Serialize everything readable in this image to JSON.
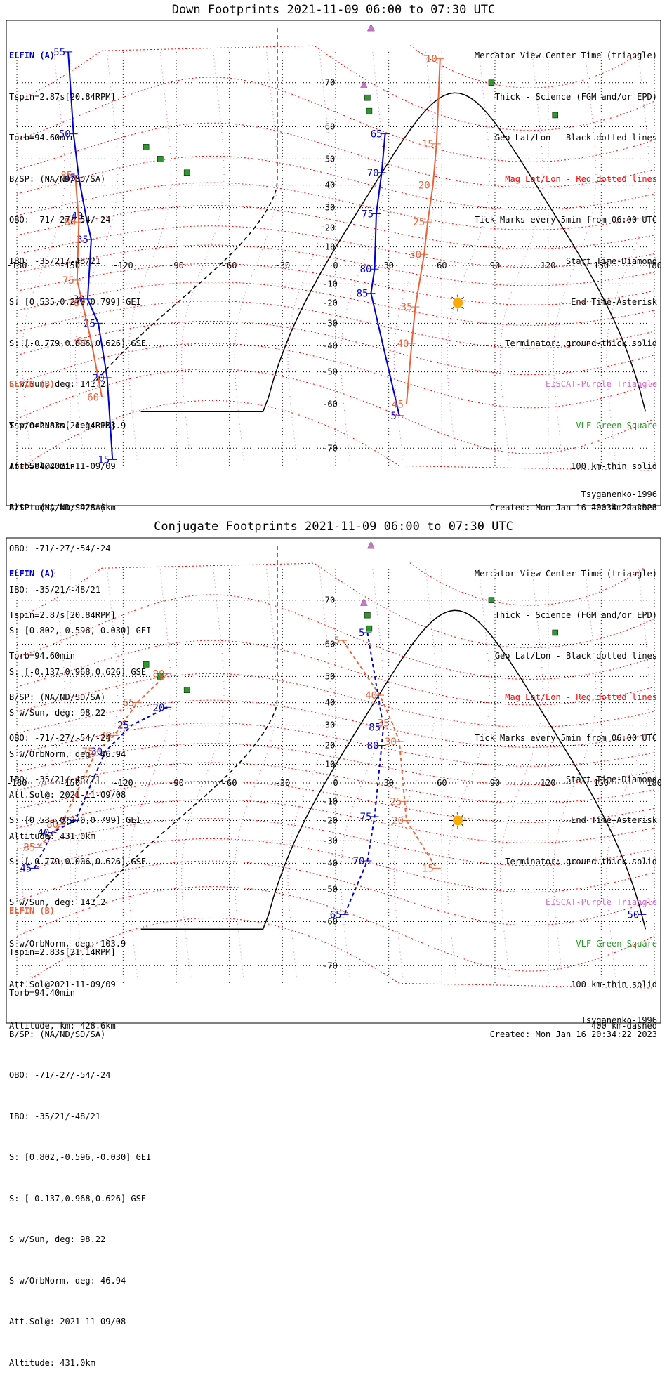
{
  "panels": [
    {
      "title": "Down Footprints 2021-11-09 06:00 to 07:30 UTC",
      "sat_a": {
        "name": "ELFIN (A)",
        "lines": [
          "Tspin=2.87s[20.84RPM]",
          "Torb=94.60min",
          "B/SP: (NA/ND/SD/SA)",
          "OBO: -71/-27/-54/-24",
          "IBO: -35/21/-48/21",
          "S: [0.535,0.270,0.799] GEI",
          "S: [-0.779,0.006,0.626] GSE",
          "S w/Sun, deg: 141.2",
          "S w/OrbNorm, deg: 103.9",
          "Att.Sol@2021-11-09/09",
          "Altitude, km: 428.6km"
        ]
      },
      "sat_b": {
        "name": "ELFIN (B)",
        "lines": [
          "Tspin=2.83s[21.14RPM]",
          "Torb=94.40min",
          "B/SP: (NA/ND/SD/SA)",
          "OBO: -71/-27/-54/-24",
          "IBO: -35/21/-48/21",
          "S: [0.802,-0.596,-0.030] GEI",
          "S: [-0.137,0.968,0.626] GSE",
          "S w/Sun, deg: 98.22",
          "S w/OrbNorm, deg: 46.94",
          "Att.Sol@: 2021-11-09/08",
          "Altitude: 431.0km"
        ]
      },
      "model": "Tsyganenko-1996",
      "created": "Created: Mon Jan 16 20:34:22 2023"
    },
    {
      "title": "Conjugate Footprints 2021-11-09 06:00 to 07:30 UTC",
      "sat_a": {
        "name": "ELFIN (A)",
        "lines": [
          "Tspin=2.87s[20.84RPM]",
          "Torb=94.60min",
          "B/SP: (NA/ND/SD/SA)",
          "OBO: -71/-27/-54/-24",
          "IBO: -35/21/-48/21",
          "S: [0.535,0.270,0.799] GEI",
          "S: [-0.779,0.006,0.626] GSE",
          "S w/Sun, deg: 141.2",
          "S w/OrbNorm, deg: 103.9",
          "Att.Sol@2021-11-09/09",
          "Altitude, km: 428.6km"
        ]
      },
      "sat_b": {
        "name": "ELFIN (B)",
        "lines": [
          "Tspin=2.83s[21.14RPM]",
          "Torb=94.40min",
          "B/SP: (NA/ND/SD/SA)",
          "OBO: -71/-27/-54/-24",
          "IBO: -35/21/-48/21",
          "S: [0.802,-0.596,-0.030] GEI",
          "S: [-0.137,0.968,0.626] GSE",
          "S w/Sun, deg: 98.22",
          "S w/OrbNorm, deg: 46.94",
          "Att.Sol@: 2021-11-09/08",
          "Altitude: 431.0km"
        ]
      },
      "model": "Tsyganenko-1996",
      "created": "Created: Mon Jan 16 20:34:22 2023"
    }
  ],
  "legend": [
    {
      "text": "Mercator View Center Time (triangle)",
      "color": "#000000"
    },
    {
      "text": "Thick - Science (FGM and/or EPD)",
      "color": "#000000"
    },
    {
      "text": "Geo Lat/Lon - Black dotted lines",
      "color": "#000000"
    },
    {
      "text": "Mag Lat/Lon - Red dotted lines",
      "color": "#ff0000"
    },
    {
      "text": "Tick Marks every 5min from 06:00 UTC",
      "color": "#000000"
    },
    {
      "text": "Start Time-Diamond",
      "color": "#000000"
    },
    {
      "text": "End Time-Asterisk",
      "color": "#000000"
    },
    {
      "text": "Terminator: ground-thick solid",
      "color": "#000000"
    },
    {
      "text": "EISCAT-Purple Triangle",
      "color": "#d46fd4"
    },
    {
      "text": "VLF-Green Square",
      "color": "#2a9a2a"
    },
    {
      "text": "100 km-thin solid",
      "color": "#000000"
    },
    {
      "text": "400 km-dashed",
      "color": "#000000"
    }
  ],
  "axes": {
    "lon_ticks": [
      "-180",
      "-150",
      "-120",
      "-90",
      "-60",
      "-30",
      "0",
      "30",
      "60",
      "90",
      "120",
      "150",
      "180"
    ],
    "lat_ticks": [
      "70",
      "60",
      "50",
      "40",
      "30",
      "20",
      "10",
      "0",
      "-10",
      "-20",
      "-30",
      "-40",
      "-50",
      "-60",
      "-70"
    ]
  },
  "colors": {
    "elfin_a": "#0000cc",
    "elfin_b": "#e8623a",
    "mag_grid": "#ff0000",
    "geo_grid": "#000000",
    "eiscat": "#d46fd4",
    "vlf": "#2a9a2a",
    "sun": "#ffaa00"
  },
  "tracks": {
    "down": {
      "a_west": {
        "labels": [
          [
            "55",
            -151,
            75
          ],
          [
            "50",
            -148,
            58
          ],
          [
            "45",
            -145,
            43
          ],
          [
            "40",
            -141,
            26
          ],
          [
            "35",
            -138,
            14
          ],
          [
            "30",
            -140,
            -18
          ],
          [
            "25",
            -134,
            -30
          ],
          [
            "20",
            -129,
            -52
          ],
          [
            "15",
            -126,
            -72
          ]
        ]
      },
      "b_west": {
        "labels": [
          [
            "85",
            -147,
            44
          ],
          [
            "80",
            -145,
            23
          ],
          [
            "75",
            -146,
            -8
          ],
          [
            "70",
            -143,
            -20
          ],
          [
            "65",
            -138,
            -38
          ],
          [
            "60",
            -132,
            -58
          ]
        ]
      },
      "a_east": {
        "labels": [
          [
            "65",
            28,
            58
          ],
          [
            "70",
            26,
            45
          ],
          [
            "75",
            23,
            27
          ],
          [
            "80",
            22,
            -2
          ],
          [
            "85",
            20,
            -15
          ],
          [
            "5",
            36,
            -63
          ]
        ]
      },
      "b_east": {
        "labels": [
          [
            "10",
            59,
            74
          ],
          [
            "15",
            57,
            55
          ],
          [
            "20",
            55,
            40
          ],
          [
            "25",
            52,
            23
          ],
          [
            "30",
            50,
            6
          ],
          [
            "35",
            45,
            -22
          ],
          [
            "40",
            43,
            -39
          ],
          [
            "45",
            40,
            -60
          ]
        ]
      }
    },
    "conj": {
      "a_west": {
        "labels": [
          [
            "20",
            -95,
            38
          ],
          [
            "25",
            -115,
            30
          ],
          [
            "30",
            -130,
            17
          ],
          [
            "35",
            -147,
            -20
          ],
          [
            "40",
            -160,
            -26
          ],
          [
            "45",
            -170,
            -42
          ]
        ]
      },
      "b_west": {
        "labels": [
          [
            "80",
            -95,
            51
          ],
          [
            "65",
            -112,
            40
          ],
          [
            "70",
            -125,
            25
          ],
          [
            "75",
            -135,
            17
          ],
          [
            "80",
            -155,
            -22
          ],
          [
            "85",
            -168,
            -33
          ]
        ]
      },
      "a_east": {
        "labels": [
          [
            "5",
            18,
            63
          ],
          [
            "85",
            27,
            29
          ],
          [
            "80",
            26,
            20
          ],
          [
            "75",
            22,
            -18
          ],
          [
            "70",
            18,
            -39
          ],
          [
            "65",
            5,
            -58
          ]
        ]
      },
      "b_east": {
        "labels": [
          [
            "5",
            4,
            61
          ],
          [
            "40",
            25,
            43
          ],
          [
            "35",
            32,
            31
          ],
          [
            "30",
            36,
            22
          ],
          [
            "25",
            39,
            -10
          ],
          [
            "20",
            40,
            -20
          ],
          [
            "15",
            57,
            -42
          ]
        ]
      },
      "a_far": {
        "labels": [
          [
            "50",
            173,
            -58
          ]
        ]
      }
    }
  }
}
